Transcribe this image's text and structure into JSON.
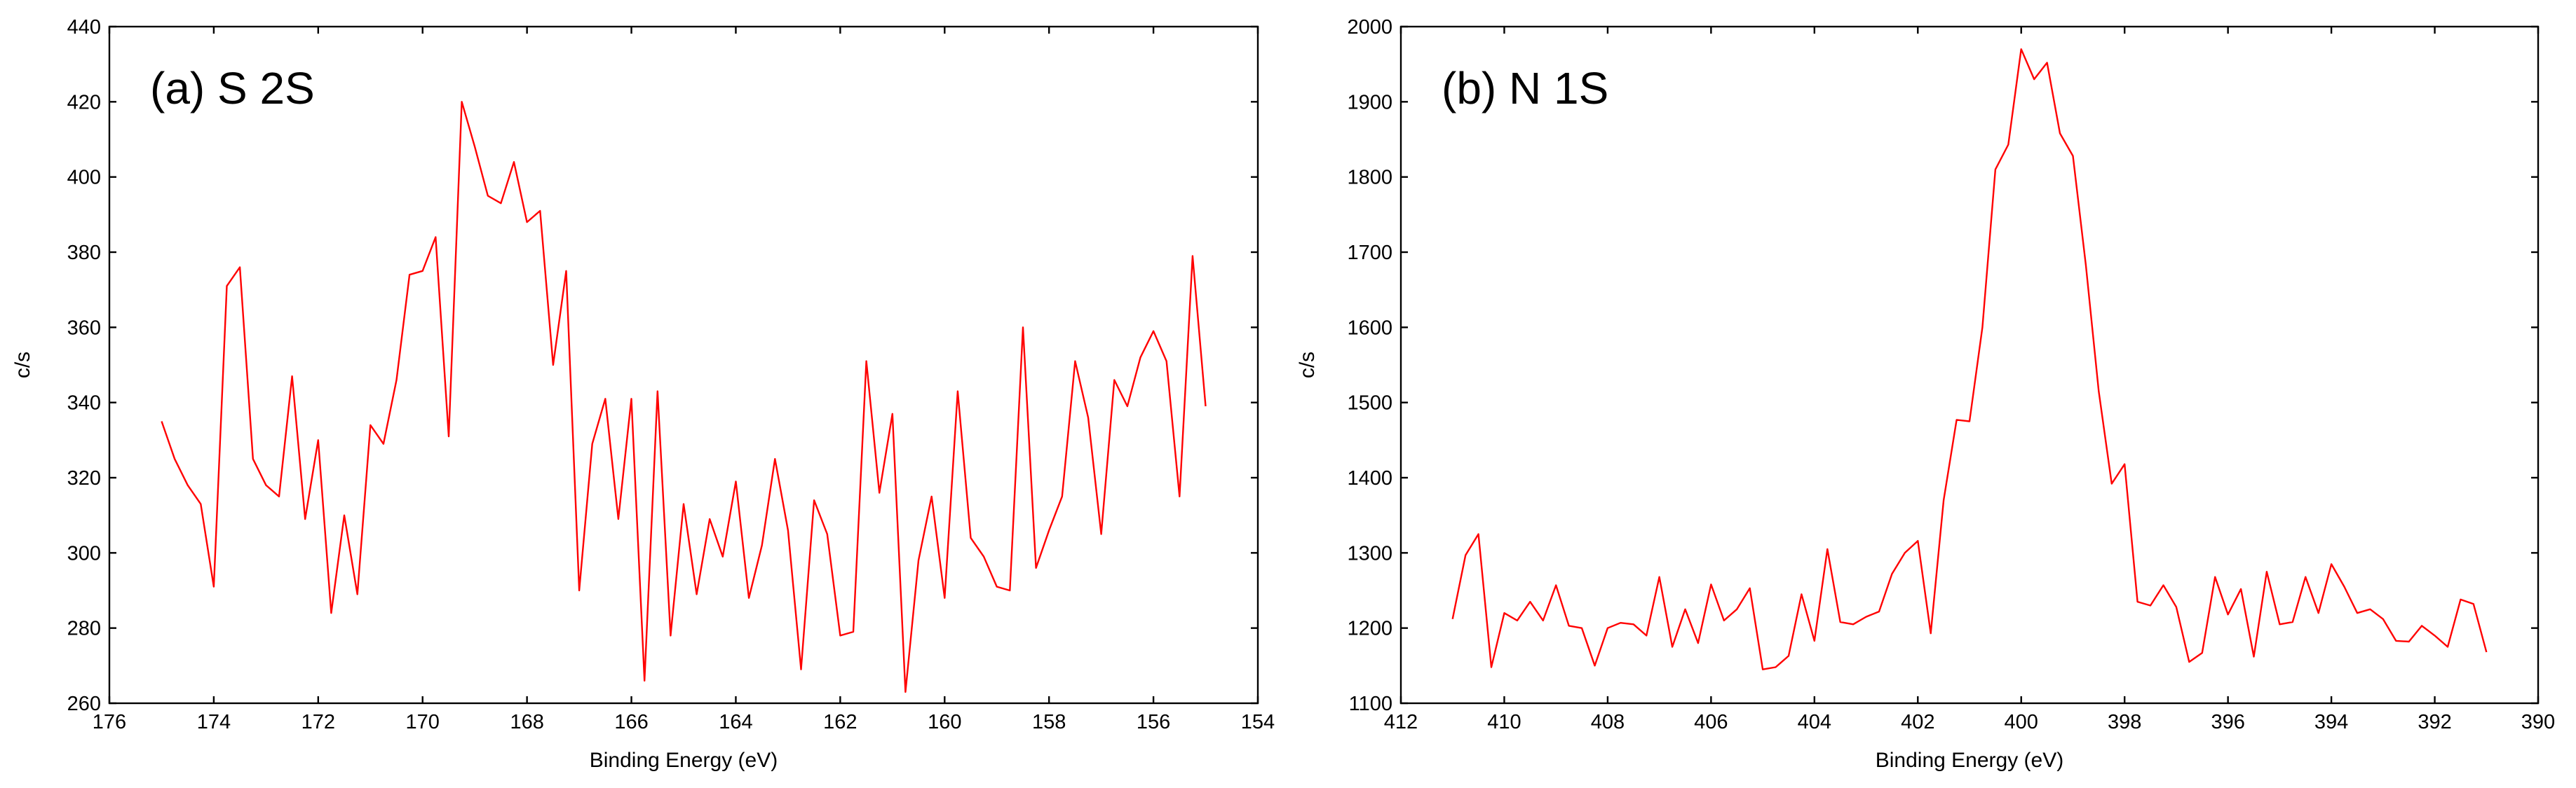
{
  "chart_data": [
    {
      "type": "line",
      "title": "(a) S 2S",
      "xlabel": "Binding Energy (eV)",
      "ylabel": "c/s",
      "xlim": [
        176,
        154
      ],
      "ylim": [
        260,
        440
      ],
      "x_reversed": true,
      "xticks": [
        176,
        174,
        172,
        170,
        168,
        166,
        164,
        162,
        160,
        158,
        156,
        154
      ],
      "yticks": [
        260,
        280,
        300,
        320,
        340,
        360,
        380,
        400,
        420,
        440
      ],
      "grid": false,
      "color": "#ff0000",
      "series": [
        {
          "x": [
            175.0,
            174.75,
            174.5,
            174.25,
            174.0,
            173.75,
            173.5,
            173.25,
            173.0,
            172.75,
            172.5,
            172.25,
            172.0,
            171.75,
            171.5,
            171.25,
            171.0,
            170.75,
            170.5,
            170.25,
            170.0,
            169.75,
            169.5,
            169.25,
            169.0,
            168.75,
            168.5,
            168.25,
            168.0,
            167.75,
            167.5,
            167.25,
            167.0,
            166.75,
            166.5,
            166.25,
            166.0,
            165.75,
            165.5,
            165.25,
            165.0,
            164.75,
            164.5,
            164.25,
            164.0,
            163.75,
            163.5,
            163.25,
            163.0,
            162.75,
            162.5,
            162.25,
            162.0,
            161.75,
            161.5,
            161.25,
            161.0,
            160.75,
            160.5,
            160.25,
            160.0,
            159.75,
            159.5,
            159.25,
            159.0,
            158.75,
            158.5,
            158.25,
            158.0,
            157.75,
            157.5,
            157.25,
            157.0,
            156.75,
            156.5,
            156.25,
            156.0,
            155.75,
            155.5,
            155.25,
            155.0
          ],
          "y": [
            335,
            325,
            318,
            313,
            291,
            371,
            376,
            325,
            318,
            315,
            347,
            309,
            330,
            284,
            310,
            289,
            334,
            329,
            346,
            374,
            375,
            384,
            331,
            420,
            408,
            395,
            393,
            404,
            388,
            391,
            350,
            375,
            290,
            329,
            341,
            309,
            341,
            266,
            343,
            278,
            313,
            289,
            309,
            299,
            319,
            288,
            302,
            325,
            306,
            269,
            314,
            305,
            278,
            279,
            351,
            316,
            337,
            263,
            298,
            315,
            288,
            343,
            304,
            299,
            291,
            290,
            360,
            296,
            306,
            315,
            351,
            336,
            305,
            346,
            339,
            352,
            359,
            351,
            315,
            379,
            339
          ]
        }
      ]
    },
    {
      "type": "line",
      "title": "(b) N 1S",
      "xlabel": "Binding Energy (eV)",
      "ylabel": "c/s",
      "xlim": [
        412,
        390
      ],
      "ylim": [
        1100,
        2000
      ],
      "x_reversed": true,
      "xticks": [
        412,
        410,
        408,
        406,
        404,
        402,
        400,
        398,
        396,
        394,
        392,
        390
      ],
      "yticks": [
        1100,
        1200,
        1300,
        1400,
        1500,
        1600,
        1700,
        1800,
        1900,
        2000
      ],
      "grid": false,
      "color": "#ff0000",
      "series": [
        {
          "x": [
            411.0,
            410.75,
            410.5,
            410.25,
            410.0,
            409.75,
            409.5,
            409.25,
            409.0,
            408.75,
            408.5,
            408.25,
            408.0,
            407.75,
            407.5,
            407.25,
            407.0,
            406.75,
            406.5,
            406.25,
            406.0,
            405.75,
            405.5,
            405.25,
            405.0,
            404.75,
            404.5,
            404.25,
            404.0,
            403.75,
            403.5,
            403.25,
            403.0,
            402.75,
            402.5,
            402.25,
            402.0,
            401.75,
            401.5,
            401.25,
            401.0,
            400.75,
            400.5,
            400.25,
            400.0,
            399.75,
            399.5,
            399.25,
            399.0,
            398.75,
            398.5,
            398.25,
            398.0,
            397.75,
            397.5,
            397.25,
            397.0,
            396.75,
            396.5,
            396.25,
            396.0,
            395.75,
            395.5,
            395.25,
            395.0,
            394.75,
            394.5,
            394.25,
            394.0,
            393.75,
            393.5,
            393.25,
            393.0,
            392.75,
            392.5,
            392.25,
            392.0,
            391.75,
            391.5,
            391.25,
            391.0
          ],
          "y": [
            1212,
            1297,
            1325,
            1148,
            1220,
            1210,
            1235,
            1210,
            1257,
            1203,
            1200,
            1150,
            1200,
            1207,
            1205,
            1190,
            1268,
            1175,
            1225,
            1180,
            1258,
            1210,
            1225,
            1253,
            1145,
            1148,
            1163,
            1245,
            1183,
            1305,
            1208,
            1205,
            1215,
            1222,
            1272,
            1300,
            1316,
            1193,
            1370,
            1477,
            1475,
            1600,
            1810,
            1843,
            1970,
            1930,
            1952,
            1858,
            1828,
            1683,
            1515,
            1392,
            1418,
            1235,
            1230,
            1257,
            1228,
            1155,
            1167,
            1268,
            1218,
            1252,
            1162,
            1275,
            1205,
            1208,
            1268,
            1220,
            1285,
            1255,
            1220,
            1225,
            1212,
            1183,
            1182,
            1203,
            1190,
            1175,
            1238,
            1232,
            1168
          ]
        }
      ]
    }
  ]
}
